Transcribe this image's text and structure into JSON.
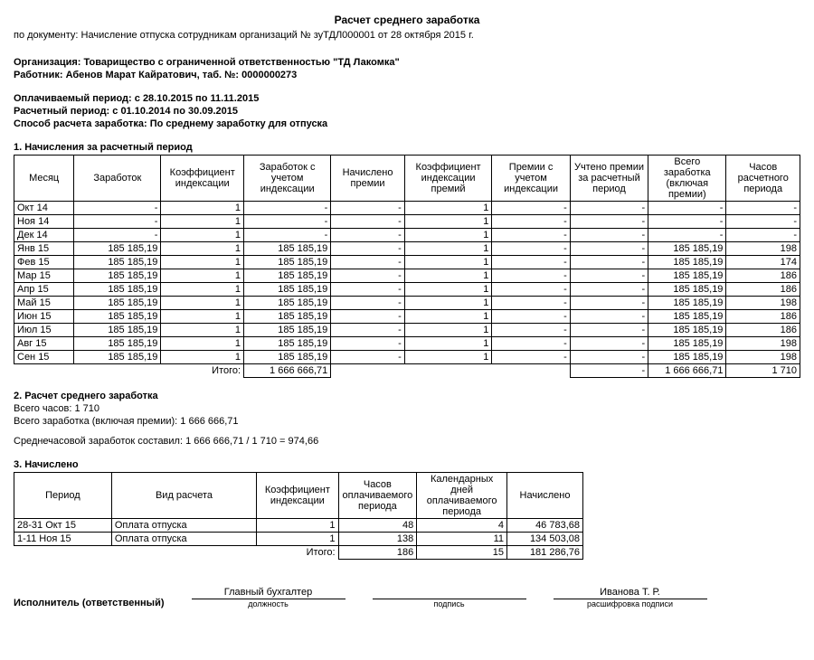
{
  "title": "Расчет среднего заработка",
  "doc_prefix": "по документу: ",
  "doc_text": "Начисление отпуска сотрудникам организаций № зуТДЛ000001 от 28 октября 2015 г.",
  "org_label": "Организация: ",
  "org_value": "Товарищество с ограниченной ответственностью \"ТД Лакомка\"",
  "worker_label": "Работник: ",
  "worker_value": "Абенов Марат Кайратович, таб. №: 0000000273",
  "pay_period_label": "Оплачиваемый период: ",
  "pay_period_value": "с 28.10.2015 по 11.11.2015",
  "calc_period_label": "Расчетный период: ",
  "calc_period_value": "с 01.10.2014 по 30.09.2015",
  "method_label": "Способ расчета заработка: ",
  "method_value": "По среднему заработку для отпуска",
  "section1": "1. Начисления за расчетный период",
  "t1": {
    "headers": [
      "Месяц",
      "Заработок",
      "Коэффициент индексации",
      "Заработок с учетом индексации",
      "Начислено премии",
      "Коэффициент индексации премий",
      "Премии с учетом индексации",
      "Учтено премии за расчетный период",
      "Всего заработка (включая премии)",
      "Часов расчетного периода"
    ],
    "rows": [
      {
        "m": "Окт 14",
        "z": "-",
        "k": "1",
        "zi": "-",
        "np": "-",
        "kp": "1",
        "pi": "-",
        "up": "-",
        "vz": "-",
        "h": "-"
      },
      {
        "m": "Ноя 14",
        "z": "-",
        "k": "1",
        "zi": "-",
        "np": "-",
        "kp": "1",
        "pi": "-",
        "up": "-",
        "vz": "-",
        "h": "-"
      },
      {
        "m": "Дек 14",
        "z": "-",
        "k": "1",
        "zi": "-",
        "np": "-",
        "kp": "1",
        "pi": "-",
        "up": "-",
        "vz": "-",
        "h": "-"
      },
      {
        "m": "Янв 15",
        "z": "185 185,19",
        "k": "1",
        "zi": "185 185,19",
        "np": "-",
        "kp": "1",
        "pi": "-",
        "up": "-",
        "vz": "185 185,19",
        "h": "198"
      },
      {
        "m": "Фев 15",
        "z": "185 185,19",
        "k": "1",
        "zi": "185 185,19",
        "np": "-",
        "kp": "1",
        "pi": "-",
        "up": "-",
        "vz": "185 185,19",
        "h": "174"
      },
      {
        "m": "Мар 15",
        "z": "185 185,19",
        "k": "1",
        "zi": "185 185,19",
        "np": "-",
        "kp": "1",
        "pi": "-",
        "up": "-",
        "vz": "185 185,19",
        "h": "186"
      },
      {
        "m": "Апр 15",
        "z": "185 185,19",
        "k": "1",
        "zi": "185 185,19",
        "np": "-",
        "kp": "1",
        "pi": "-",
        "up": "-",
        "vz": "185 185,19",
        "h": "186"
      },
      {
        "m": "Май 15",
        "z": "185 185,19",
        "k": "1",
        "zi": "185 185,19",
        "np": "-",
        "kp": "1",
        "pi": "-",
        "up": "-",
        "vz": "185 185,19",
        "h": "198"
      },
      {
        "m": "Июн 15",
        "z": "185 185,19",
        "k": "1",
        "zi": "185 185,19",
        "np": "-",
        "kp": "1",
        "pi": "-",
        "up": "-",
        "vz": "185 185,19",
        "h": "186"
      },
      {
        "m": "Июл 15",
        "z": "185 185,19",
        "k": "1",
        "zi": "185 185,19",
        "np": "-",
        "kp": "1",
        "pi": "-",
        "up": "-",
        "vz": "185 185,19",
        "h": "186"
      },
      {
        "m": "Авг 15",
        "z": "185 185,19",
        "k": "1",
        "zi": "185 185,19",
        "np": "-",
        "kp": "1",
        "pi": "-",
        "up": "-",
        "vz": "185 185,19",
        "h": "198"
      },
      {
        "m": "Сен 15",
        "z": "185 185,19",
        "k": "1",
        "zi": "185 185,19",
        "np": "-",
        "kp": "1",
        "pi": "-",
        "up": "-",
        "vz": "185 185,19",
        "h": "198"
      }
    ],
    "total_label": "Итого:",
    "total_zi": "1 666 666,71",
    "total_up": "-",
    "total_vz": "1 666 666,71",
    "total_h": "1 710"
  },
  "section2": "2. Расчет среднего  заработка",
  "s2_line1": "Всего часов: 1 710",
  "s2_line2": "Всего заработка (включая премии): 1 666 666,71",
  "s2_line3": "Среднечасовой заработок составил: 1 666 666,71 / 1 710 = 974,66",
  "section3": "3. Начислено",
  "t3": {
    "headers": [
      "Период",
      "Вид расчета",
      "Коэффициент индексации",
      "Часов оплачиваемого периода",
      "Календарных дней оплачиваемого периода",
      "Начислено"
    ],
    "rows": [
      {
        "p": "28-31 Окт 15",
        "v": "Оплата отпуска",
        "k": "1",
        "h": "48",
        "d": "4",
        "n": "46 783,68"
      },
      {
        "p": "1-11 Ноя 15",
        "v": "Оплата отпуска",
        "k": "1",
        "h": "138",
        "d": "11",
        "n": "134 503,08"
      }
    ],
    "total_label": "Итого:",
    "total_h": "186",
    "total_d": "15",
    "total_n": "181 286,76"
  },
  "sig": {
    "executor": "Исполнитель (ответственный)",
    "position": "Главный бухгалтер",
    "position_cap": "должность",
    "sign_cap": "подпись",
    "name": "Иванова Т. Р.",
    "name_cap": "расшифровка подписи"
  }
}
